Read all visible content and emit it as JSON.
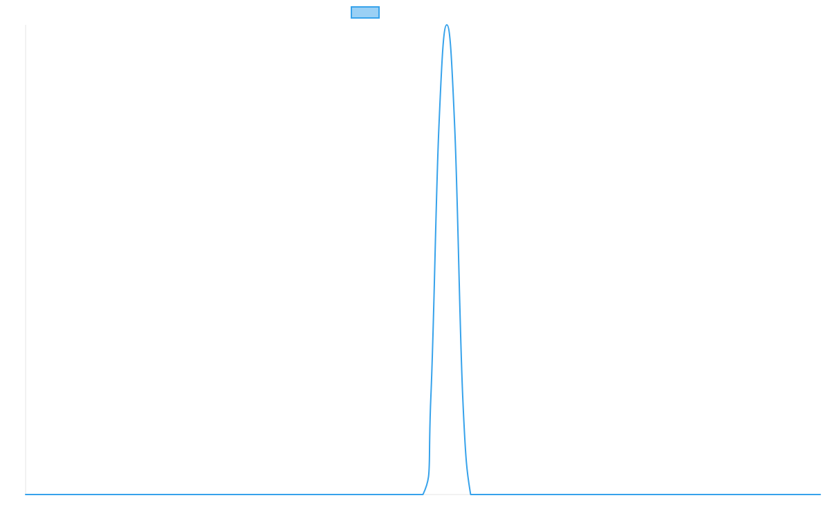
{
  "chart_data": {
    "type": "line",
    "title": "",
    "xlabel": "",
    "ylabel": "",
    "xlim": [
      0,
      100
    ],
    "ylim": [
      0,
      1
    ],
    "grid": false,
    "legend_position": "top-center",
    "x": [
      0,
      5,
      10,
      15,
      20,
      25,
      30,
      35,
      40,
      45,
      50,
      51,
      52,
      53,
      54,
      55,
      56,
      57,
      58,
      60,
      65,
      70,
      75,
      80,
      85,
      90,
      95,
      100
    ],
    "series": [
      {
        "name": "",
        "color": "#36a2eb",
        "fill_color": "#9ad0f5",
        "values": [
          0,
          0,
          0,
          0,
          0,
          0,
          0,
          0,
          0,
          0,
          0,
          0.21,
          0.78,
          1.0,
          0.78,
          0.21,
          0,
          0,
          0,
          0,
          0,
          0,
          0,
          0,
          0,
          0,
          0,
          0
        ]
      }
    ]
  }
}
